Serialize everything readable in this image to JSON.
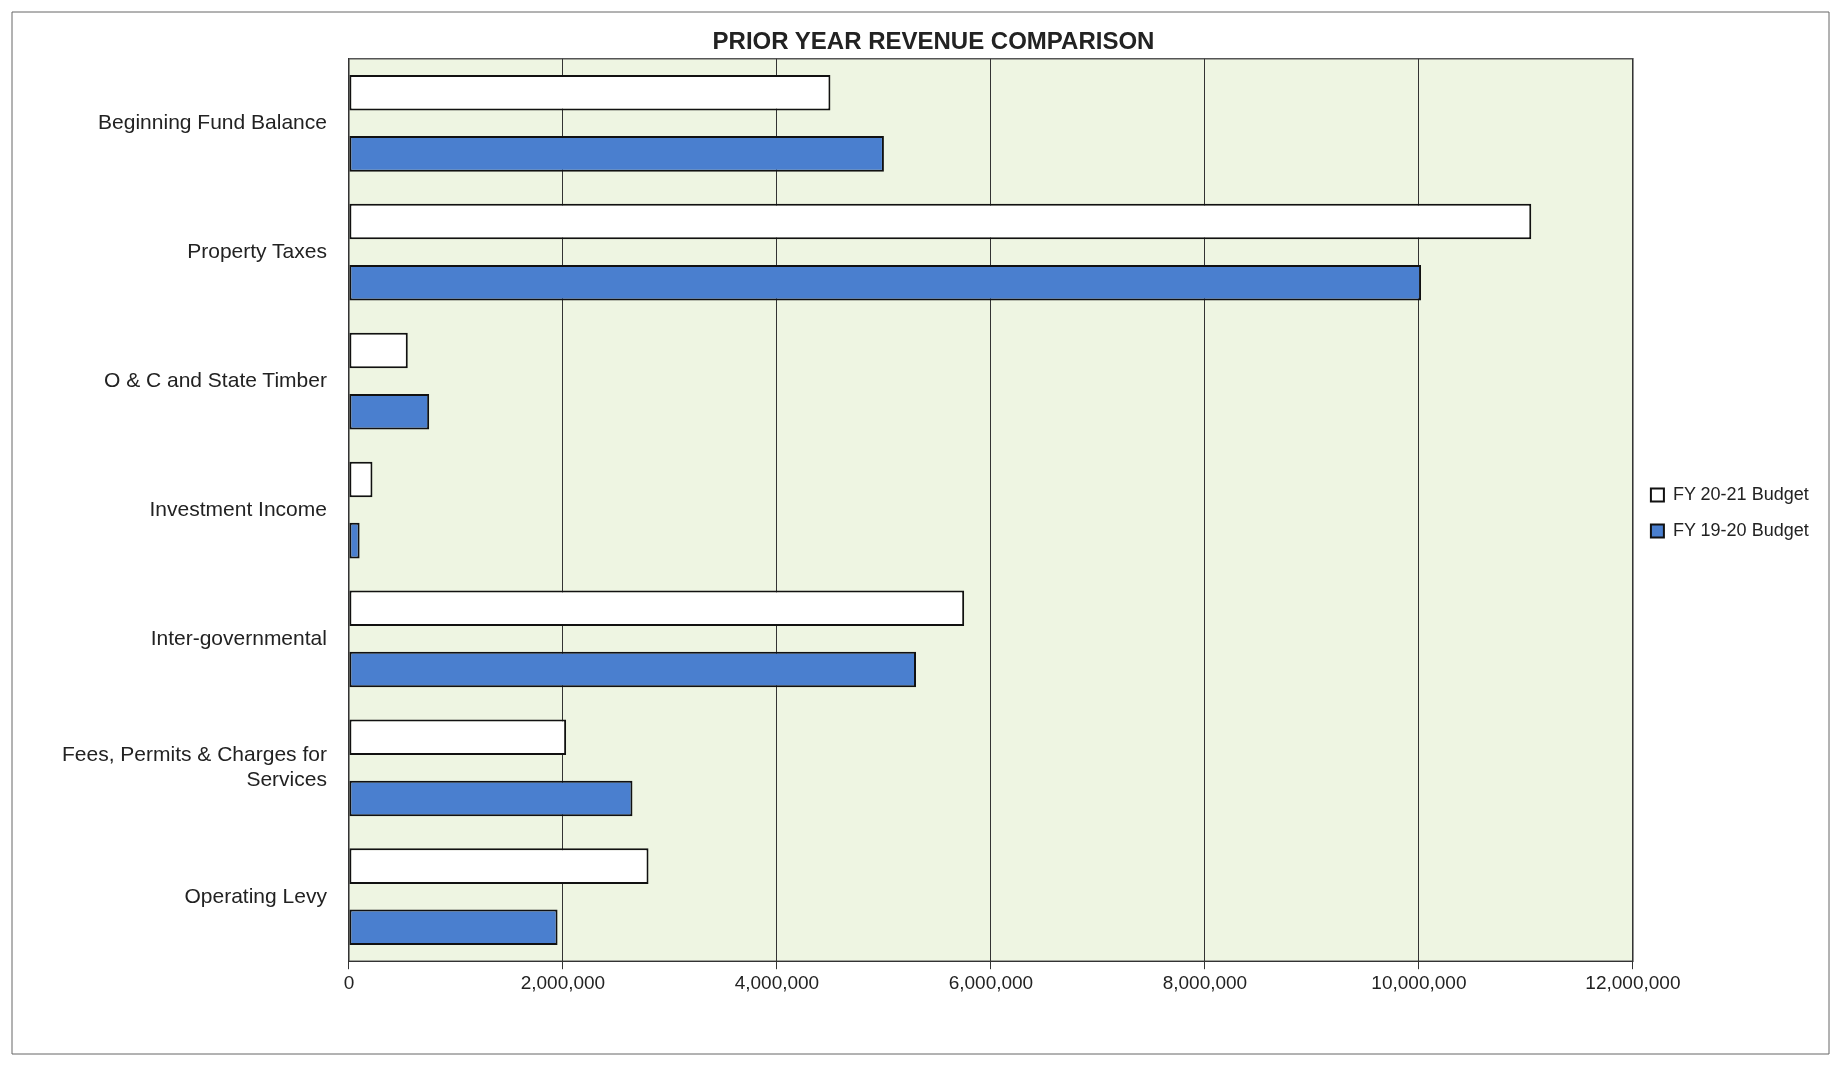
{
  "chart_data": {
    "type": "bar",
    "orientation": "horizontal",
    "title": "PRIOR YEAR REVENUE COMPARISON",
    "categories": [
      "Beginning Fund Balance",
      "Property Taxes",
      "O & C and State Timber",
      "Investment Income",
      "Inter-governmental",
      "Fees, Permits & Charges for Services",
      "Operating Levy"
    ],
    "series": [
      {
        "name": "FY 20-21 Budget",
        "color": "#ffffff",
        "values": [
          4500000,
          11050000,
          550000,
          220000,
          5750000,
          2030000,
          2800000
        ]
      },
      {
        "name": "FY 19-20 Budget",
        "color": "#4a7fcf",
        "values": [
          5000000,
          10020000,
          750000,
          100000,
          5300000,
          2650000,
          1950000
        ]
      }
    ],
    "xlim": [
      0,
      12000000
    ],
    "xticks": [
      0,
      {
        "value": 2000000,
        "label": "2,000,000"
      },
      {
        "value": 4000000,
        "label": "4,000,000"
      },
      {
        "value": 6000000,
        "label": "6,000,000"
      },
      {
        "value": 8000000,
        "label": "8,000,000"
      },
      {
        "value": 10000000,
        "label": "10,000,000"
      },
      {
        "value": 12000000,
        "label": "12,000,000"
      }
    ],
    "grid": "x",
    "legend": "right"
  }
}
